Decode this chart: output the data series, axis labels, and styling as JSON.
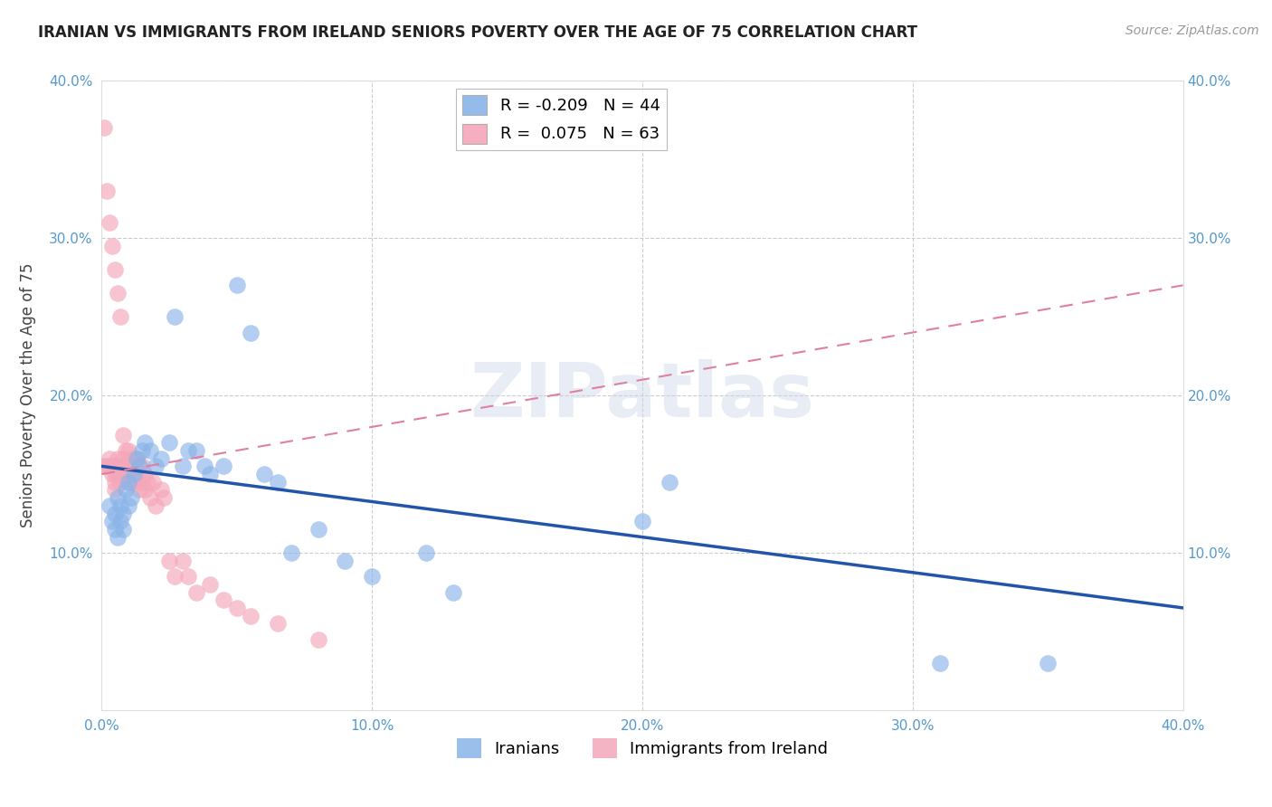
{
  "title": "IRANIAN VS IMMIGRANTS FROM IRELAND SENIORS POVERTY OVER THE AGE OF 75 CORRELATION CHART",
  "source": "Source: ZipAtlas.com",
  "ylabel_label": "Seniors Poverty Over the Age of 75",
  "xlim": [
    0.0,
    0.4
  ],
  "ylim": [
    0.0,
    0.4
  ],
  "iranians_color": "#8ab4e8",
  "ireland_color": "#f4a7b9",
  "iranians_R": -0.209,
  "iranians_N": 44,
  "ireland_R": 0.075,
  "ireland_N": 63,
  "legend_label_1": "Iranians",
  "legend_label_2": "Immigrants from Ireland",
  "watermark": "ZIPatlas",
  "iranians_x": [
    0.003,
    0.004,
    0.005,
    0.005,
    0.006,
    0.006,
    0.007,
    0.007,
    0.008,
    0.008,
    0.009,
    0.01,
    0.01,
    0.011,
    0.012,
    0.013,
    0.014,
    0.015,
    0.016,
    0.018,
    0.02,
    0.022,
    0.025,
    0.027,
    0.03,
    0.032,
    0.035,
    0.038,
    0.04,
    0.045,
    0.05,
    0.055,
    0.06,
    0.065,
    0.07,
    0.08,
    0.09,
    0.1,
    0.12,
    0.13,
    0.2,
    0.21,
    0.31,
    0.35
  ],
  "iranians_y": [
    0.13,
    0.12,
    0.115,
    0.125,
    0.11,
    0.135,
    0.12,
    0.13,
    0.115,
    0.125,
    0.14,
    0.13,
    0.145,
    0.135,
    0.15,
    0.16,
    0.155,
    0.165,
    0.17,
    0.165,
    0.155,
    0.16,
    0.17,
    0.25,
    0.155,
    0.165,
    0.165,
    0.155,
    0.15,
    0.155,
    0.27,
    0.24,
    0.15,
    0.145,
    0.1,
    0.115,
    0.095,
    0.085,
    0.1,
    0.075,
    0.12,
    0.145,
    0.03,
    0.03
  ],
  "ireland_x": [
    0.001,
    0.001,
    0.002,
    0.002,
    0.003,
    0.003,
    0.003,
    0.004,
    0.004,
    0.004,
    0.005,
    0.005,
    0.005,
    0.005,
    0.005,
    0.006,
    0.006,
    0.006,
    0.006,
    0.007,
    0.007,
    0.007,
    0.007,
    0.008,
    0.008,
    0.008,
    0.008,
    0.009,
    0.009,
    0.009,
    0.01,
    0.01,
    0.01,
    0.011,
    0.011,
    0.011,
    0.012,
    0.012,
    0.013,
    0.013,
    0.014,
    0.014,
    0.015,
    0.015,
    0.016,
    0.016,
    0.017,
    0.018,
    0.019,
    0.02,
    0.022,
    0.023,
    0.025,
    0.027,
    0.03,
    0.032,
    0.035,
    0.04,
    0.045,
    0.05,
    0.055,
    0.065,
    0.08
  ],
  "ireland_y": [
    0.37,
    0.155,
    0.33,
    0.155,
    0.31,
    0.16,
    0.155,
    0.295,
    0.155,
    0.15,
    0.28,
    0.155,
    0.15,
    0.145,
    0.14,
    0.265,
    0.16,
    0.155,
    0.15,
    0.25,
    0.155,
    0.15,
    0.145,
    0.175,
    0.16,
    0.155,
    0.15,
    0.165,
    0.155,
    0.15,
    0.165,
    0.155,
    0.15,
    0.16,
    0.155,
    0.145,
    0.155,
    0.15,
    0.16,
    0.145,
    0.155,
    0.14,
    0.155,
    0.145,
    0.15,
    0.14,
    0.145,
    0.135,
    0.145,
    0.13,
    0.14,
    0.135,
    0.095,
    0.085,
    0.095,
    0.085,
    0.075,
    0.08,
    0.07,
    0.065,
    0.06,
    0.055,
    0.045
  ],
  "iran_line_x": [
    0.0,
    0.4
  ],
  "iran_line_y": [
    0.155,
    0.065
  ],
  "ireland_line_x": [
    0.0,
    0.4
  ],
  "ireland_line_y": [
    0.15,
    0.27
  ]
}
